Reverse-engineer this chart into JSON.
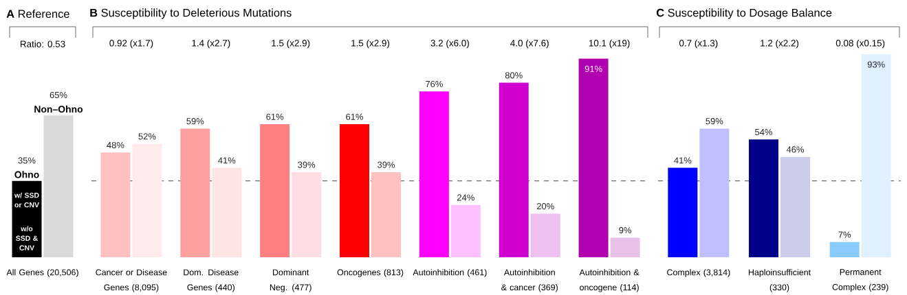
{
  "chart_data": [
    {
      "type": "bar",
      "title": "**A**  Reference",
      "categories": [
        "All Genes (20,506)"
      ],
      "series": [
        {
          "name": "Ohno",
          "colors": [
            "#000000"
          ],
          "values": [
            35
          ],
          "value_labels": [
            "35%"
          ]
        },
        {
          "name": "Non–Ohno",
          "colors": [
            "#d9d9d9"
          ],
          "values": [
            65
          ],
          "value_labels": [
            "65%"
          ]
        }
      ],
      "annotations": [
        "Ratio:  0.53",
        "w/ SSD or CNV",
        "w/o SSD & CNV"
      ]
    },
    {
      "type": "bar",
      "title": "**B**  Susceptibility to Deleterious Mutations",
      "categories": [
        "Cancer or Disease Genes (8,095)",
        "Dom. Disease Genes (440)",
        "Dominant Neg. (477)",
        "Oncogenes (813)",
        "Autoinhibition (461)",
        "Autoinhibition & cancer (369)",
        "Autoinhibition & oncogene (114)"
      ],
      "series": [
        {
          "colors": [
            "#ffc0c0",
            "#ffa0a0",
            "#ff8080",
            "#ff0000",
            "#ff00ff",
            "#d000d0",
            "#b000b0"
          ],
          "values": [
            48,
            59,
            61,
            61,
            76,
            80,
            91
          ],
          "value_labels": [
            "48%",
            "59%",
            "61%",
            "61%",
            "76%",
            "80%",
            "91%"
          ]
        },
        {
          "colors": [
            "#ffebeb",
            "#ffe4e4",
            "#ffdde0",
            "#ffc0c0",
            "#ffc0ff",
            "#f0c0f0",
            "#e8c0e8"
          ],
          "values": [
            52,
            41,
            39,
            39,
            24,
            20,
            9
          ],
          "value_labels": [
            "52%",
            "41%",
            "39%",
            "39%",
            "24%",
            "20%",
            "9%"
          ]
        }
      ],
      "ref_lines": [
        {
          "axis": "y",
          "value": 35,
          "color": "#333333",
          "line_style": "dashed"
        }
      ],
      "annotations": [
        "0.92  (x1.7)",
        "1.4  (x2.7)",
        "1.5  (x2.9)",
        "1.5  (x2.9)",
        "3.2  (x6.0)",
        "4.0  (x7.6)",
        "10.1  (x19)"
      ]
    },
    {
      "type": "bar",
      "title": "**C**  Susceptibility to Dosage Balance",
      "categories": [
        "Complex (3,814)",
        "Haploinsufficient (330)",
        "Permanent Complex (239)"
      ],
      "series": [
        {
          "colors": [
            "#0000ff",
            "#000088",
            "#88ccff"
          ],
          "values": [
            41,
            54,
            7
          ],
          "value_labels": [
            "41%",
            "54%",
            "7%"
          ]
        },
        {
          "colors": [
            "#c0c0ff",
            "#ccccea",
            "#e0f0ff"
          ],
          "values": [
            59,
            46,
            93
          ],
          "value_labels": [
            "59%",
            "46%",
            "93%"
          ]
        }
      ],
      "ref_lines": [
        {
          "axis": "y",
          "value": 35,
          "color": "#333333",
          "line_style": "dashed"
        }
      ],
      "annotations": [
        "0.7  (x1.3)",
        "1.2  (x2.2)",
        "0.08  (x0.15)"
      ]
    }
  ]
}
